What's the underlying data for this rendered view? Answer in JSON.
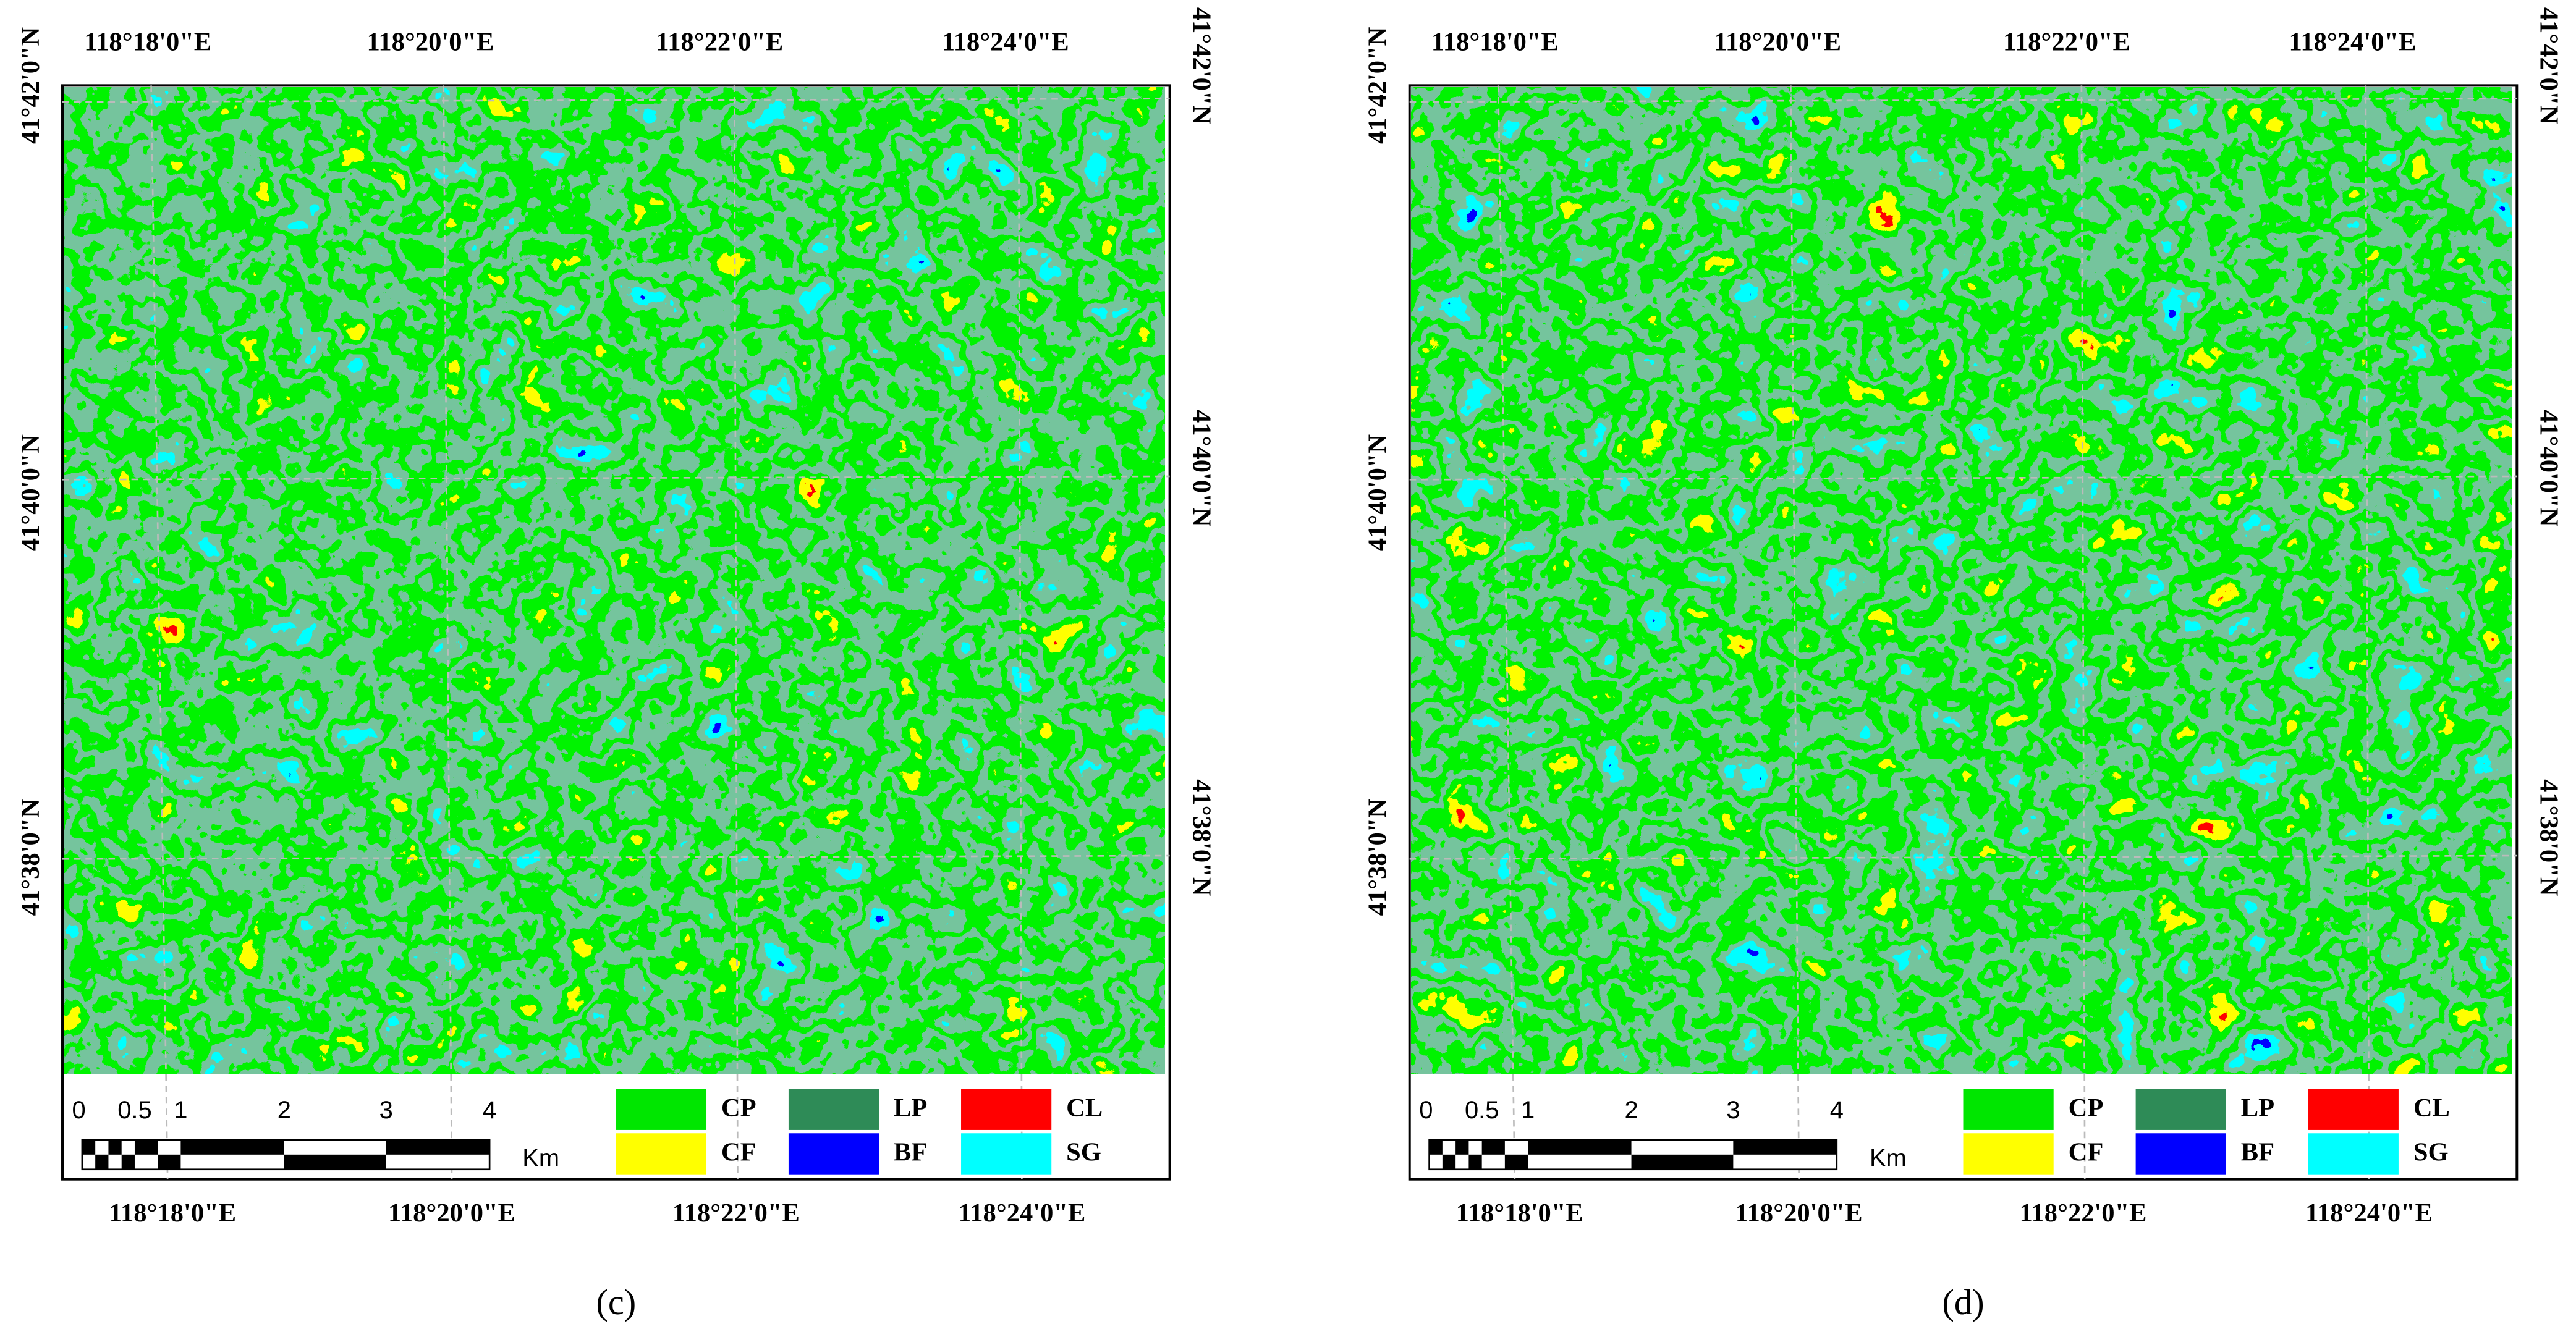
{
  "panels": [
    {
      "caption": "(c)",
      "top_labels": [
        "118°18'0\"E",
        "118°20'0\"E",
        "118°22'0\"E",
        "118°24'0\"E"
      ],
      "bottom_labels": [
        "118°18'0\"E",
        "118°20'0\"E",
        "118°22'0\"E",
        "118°24'0\"E"
      ],
      "left_labels": [
        "41°42'0\"N",
        "41°40'0\"N",
        "41°38'0\"N"
      ],
      "right_labels": [
        "41°42'0\"N",
        "41°40'0\"N",
        "41°38'0\"N"
      ],
      "scale_labels": [
        "0",
        "0.5",
        "1",
        "2",
        "3",
        "4"
      ],
      "scale_unit": "Km",
      "legend": [
        {
          "code": "CP",
          "color": "#00e600"
        },
        {
          "code": "CF",
          "color": "#ffff00"
        },
        {
          "code": "LP",
          "color": "#2e8b57"
        },
        {
          "code": "BF",
          "color": "#0000ff"
        },
        {
          "code": "CL",
          "color": "#ff0000"
        },
        {
          "code": "SG",
          "color": "#00ffff"
        }
      ]
    },
    {
      "caption": "(d)",
      "top_labels": [
        "118°18'0\"E",
        "118°20'0\"E",
        "118°22'0\"E",
        "118°24'0\"E"
      ],
      "bottom_labels": [
        "118°18'0\"E",
        "118°20'0\"E",
        "118°22'0\"E",
        "118°24'0\"E"
      ],
      "left_labels": [
        "41°42'0\"N",
        "41°40'0\"N",
        "41°38'0\"N"
      ],
      "right_labels": [
        "41°42'0\"N",
        "41°40'0\"N",
        "41°38'0\"N"
      ],
      "scale_labels": [
        "0",
        "0.5",
        "1",
        "2",
        "3",
        "4"
      ],
      "scale_unit": "Km",
      "legend": [
        {
          "code": "CP",
          "color": "#00e600"
        },
        {
          "code": "CF",
          "color": "#ffff00"
        },
        {
          "code": "LP",
          "color": "#2e8b57"
        },
        {
          "code": "BF",
          "color": "#0000ff"
        },
        {
          "code": "CL",
          "color": "#ff0000"
        },
        {
          "code": "SG",
          "color": "#00ffff"
        }
      ]
    }
  ]
}
